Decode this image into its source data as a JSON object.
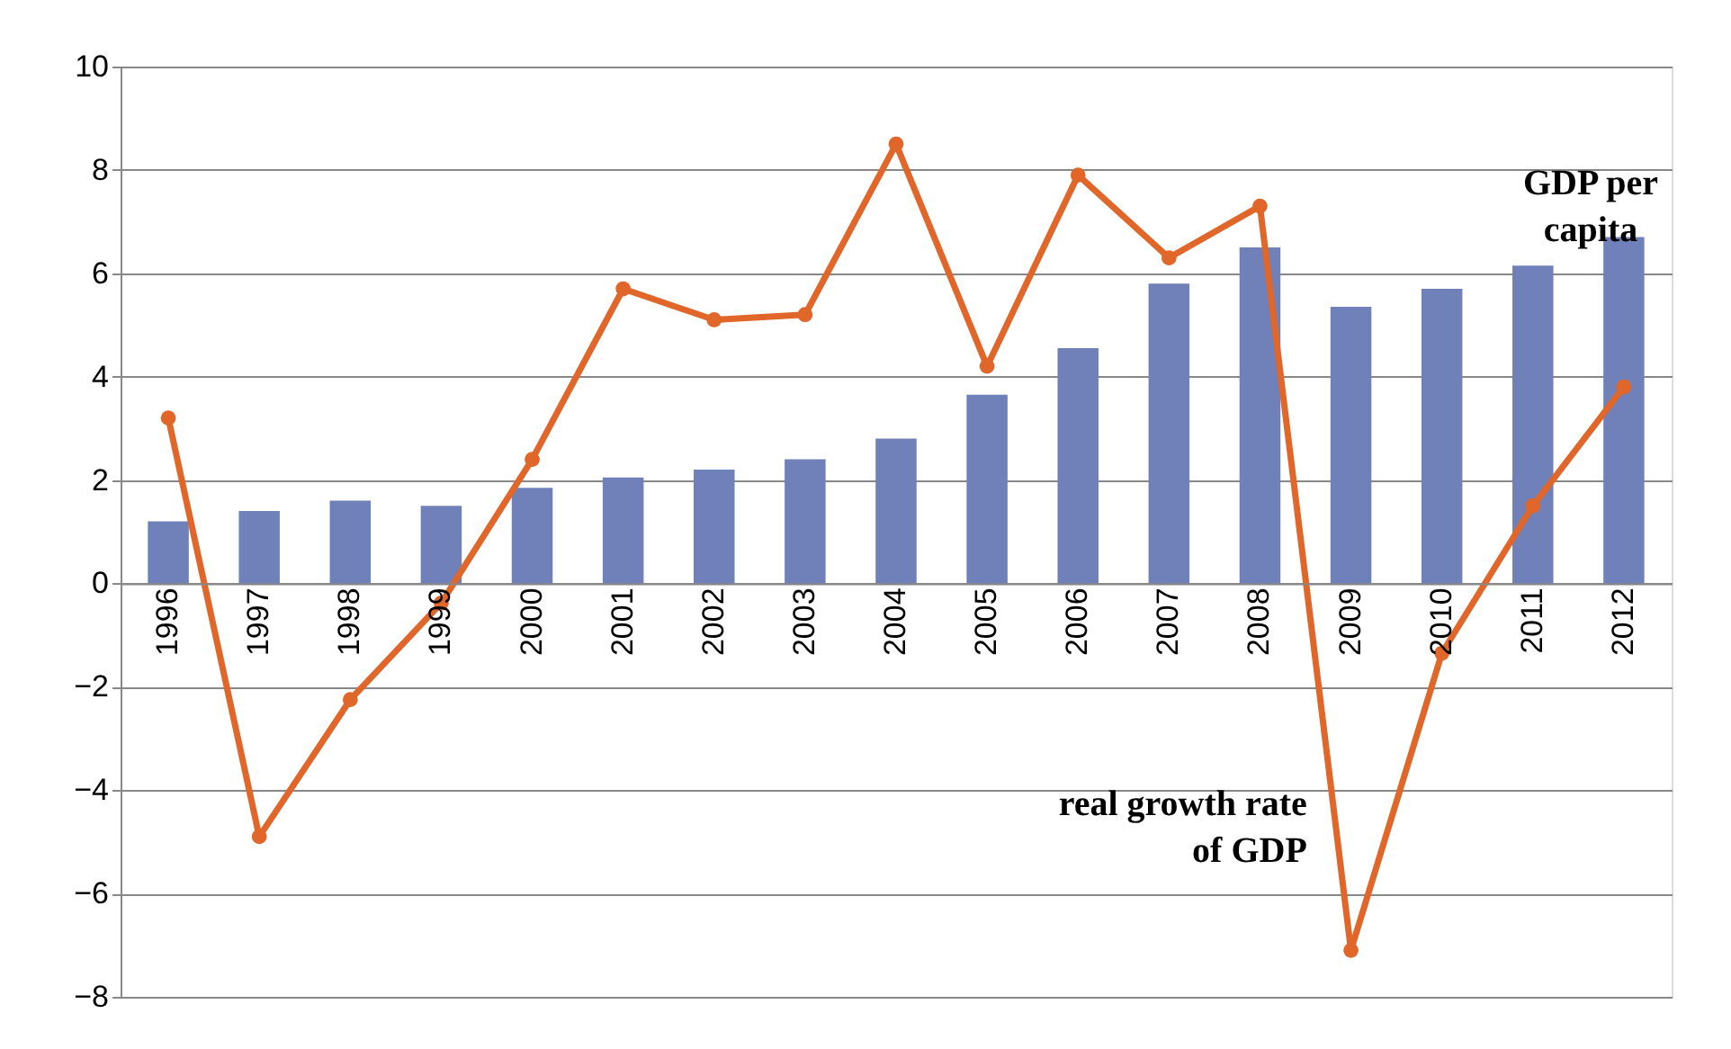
{
  "chart_data": {
    "type": "bar",
    "categories": [
      "1996",
      "1997",
      "1998",
      "1999",
      "2000",
      "2001",
      "2002",
      "2003",
      "2004",
      "2005",
      "2006",
      "2007",
      "2008",
      "2009",
      "2010",
      "2011",
      "2012"
    ],
    "series": [
      {
        "name": "GDP per capita",
        "color": "#7080b8",
        "values": [
          1.2,
          1.4,
          1.6,
          1.5,
          1.85,
          2.05,
          2.2,
          2.4,
          2.8,
          3.65,
          4.55,
          5.8,
          6.5,
          5.35,
          5.7,
          6.15,
          6.7
        ]
      },
      {
        "name": "real growth rate of GDP",
        "type": "line",
        "color": "#e0662a",
        "marker": "circle",
        "values": [
          3.2,
          -4.9,
          -2.25,
          -0.38,
          2.4,
          5.7,
          5.1,
          5.2,
          8.5,
          4.2,
          7.9,
          6.3,
          7.3,
          -7.1,
          -1.35,
          1.5,
          3.8
        ]
      }
    ],
    "ylim": [
      -8,
      10
    ],
    "yticks": [
      -8,
      -6,
      -4,
      -2,
      0,
      2,
      4,
      6,
      8,
      10
    ],
    "grid": "y"
  }
}
